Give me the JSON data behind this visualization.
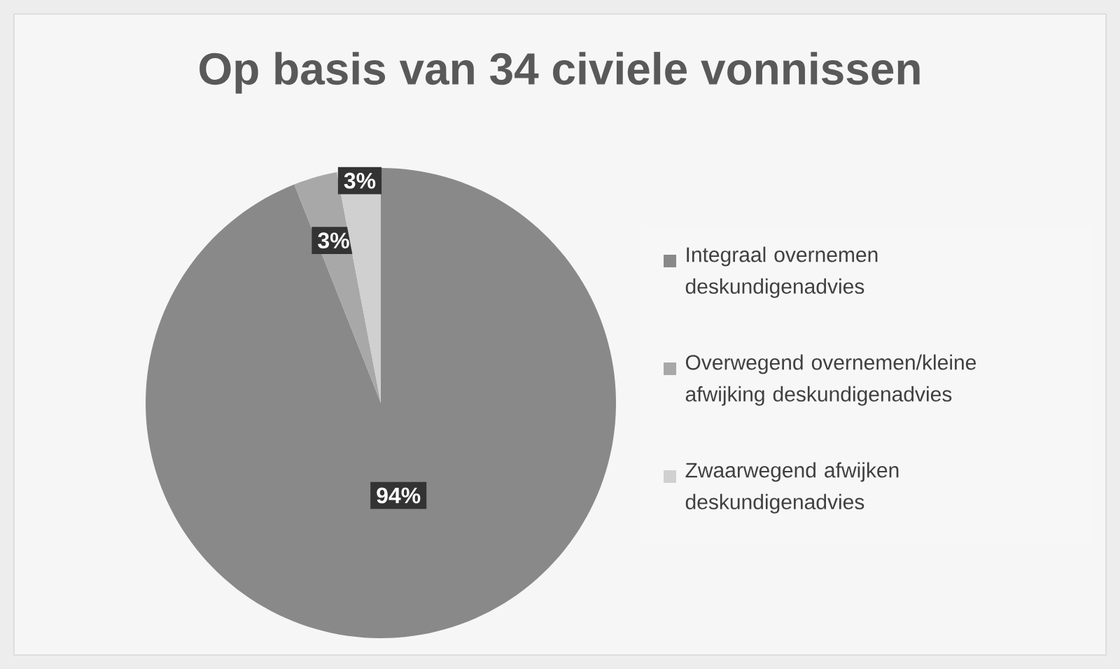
{
  "chart_data": {
    "type": "pie",
    "title": "Op basis van 34 civiele vonnissen",
    "categories": [
      "Integraal overnemen deskundigenadvies",
      "Overwegend overnemen/kleine afwijking deskundigenadvies",
      "Zwaarwegend afwijken deskundigenadvies"
    ],
    "values": [
      94,
      3,
      3
    ],
    "colors": [
      "#898989",
      "#a8a8a8",
      "#d0d0d0"
    ],
    "value_labels": [
      "94%",
      "3%",
      "3%"
    ],
    "legend": "right"
  }
}
